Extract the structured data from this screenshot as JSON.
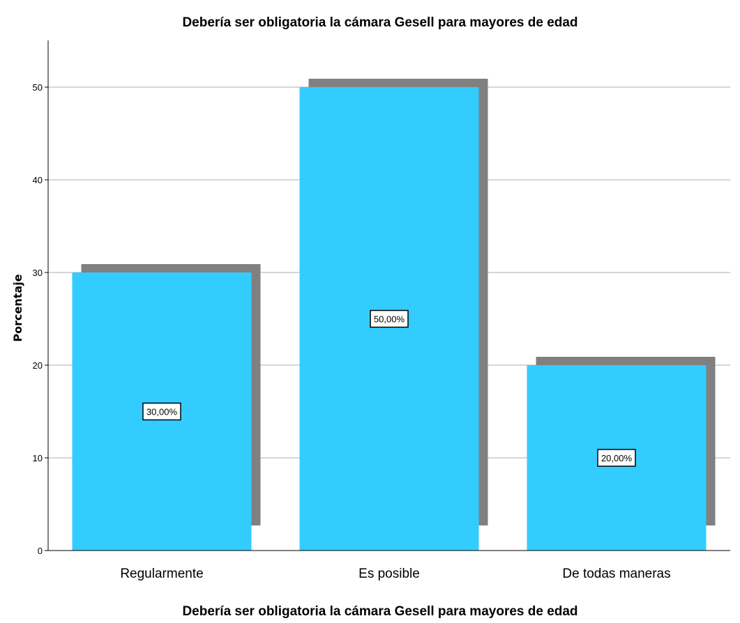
{
  "chart_data": {
    "type": "bar",
    "title": "Debería ser obligatoria la cámara Gesell para mayores de edad",
    "xlabel": "Debería ser obligatoria la cámara Gesell para mayores de edad",
    "ylabel": "Porcentaje",
    "categories": [
      "Regularmente",
      "Es posible",
      "De todas maneras"
    ],
    "values": [
      30,
      50,
      20
    ],
    "data_labels": [
      "30,00%",
      "50,00%",
      "20,00%"
    ],
    "ylim": [
      0,
      55
    ],
    "yticks": [
      0,
      10,
      20,
      30,
      40,
      50
    ],
    "grid": true,
    "legend": "none",
    "colors": {
      "bar": "#33ccff",
      "shadow": "#808080",
      "grid": "#c8c8c8",
      "axis": "#000000"
    }
  }
}
